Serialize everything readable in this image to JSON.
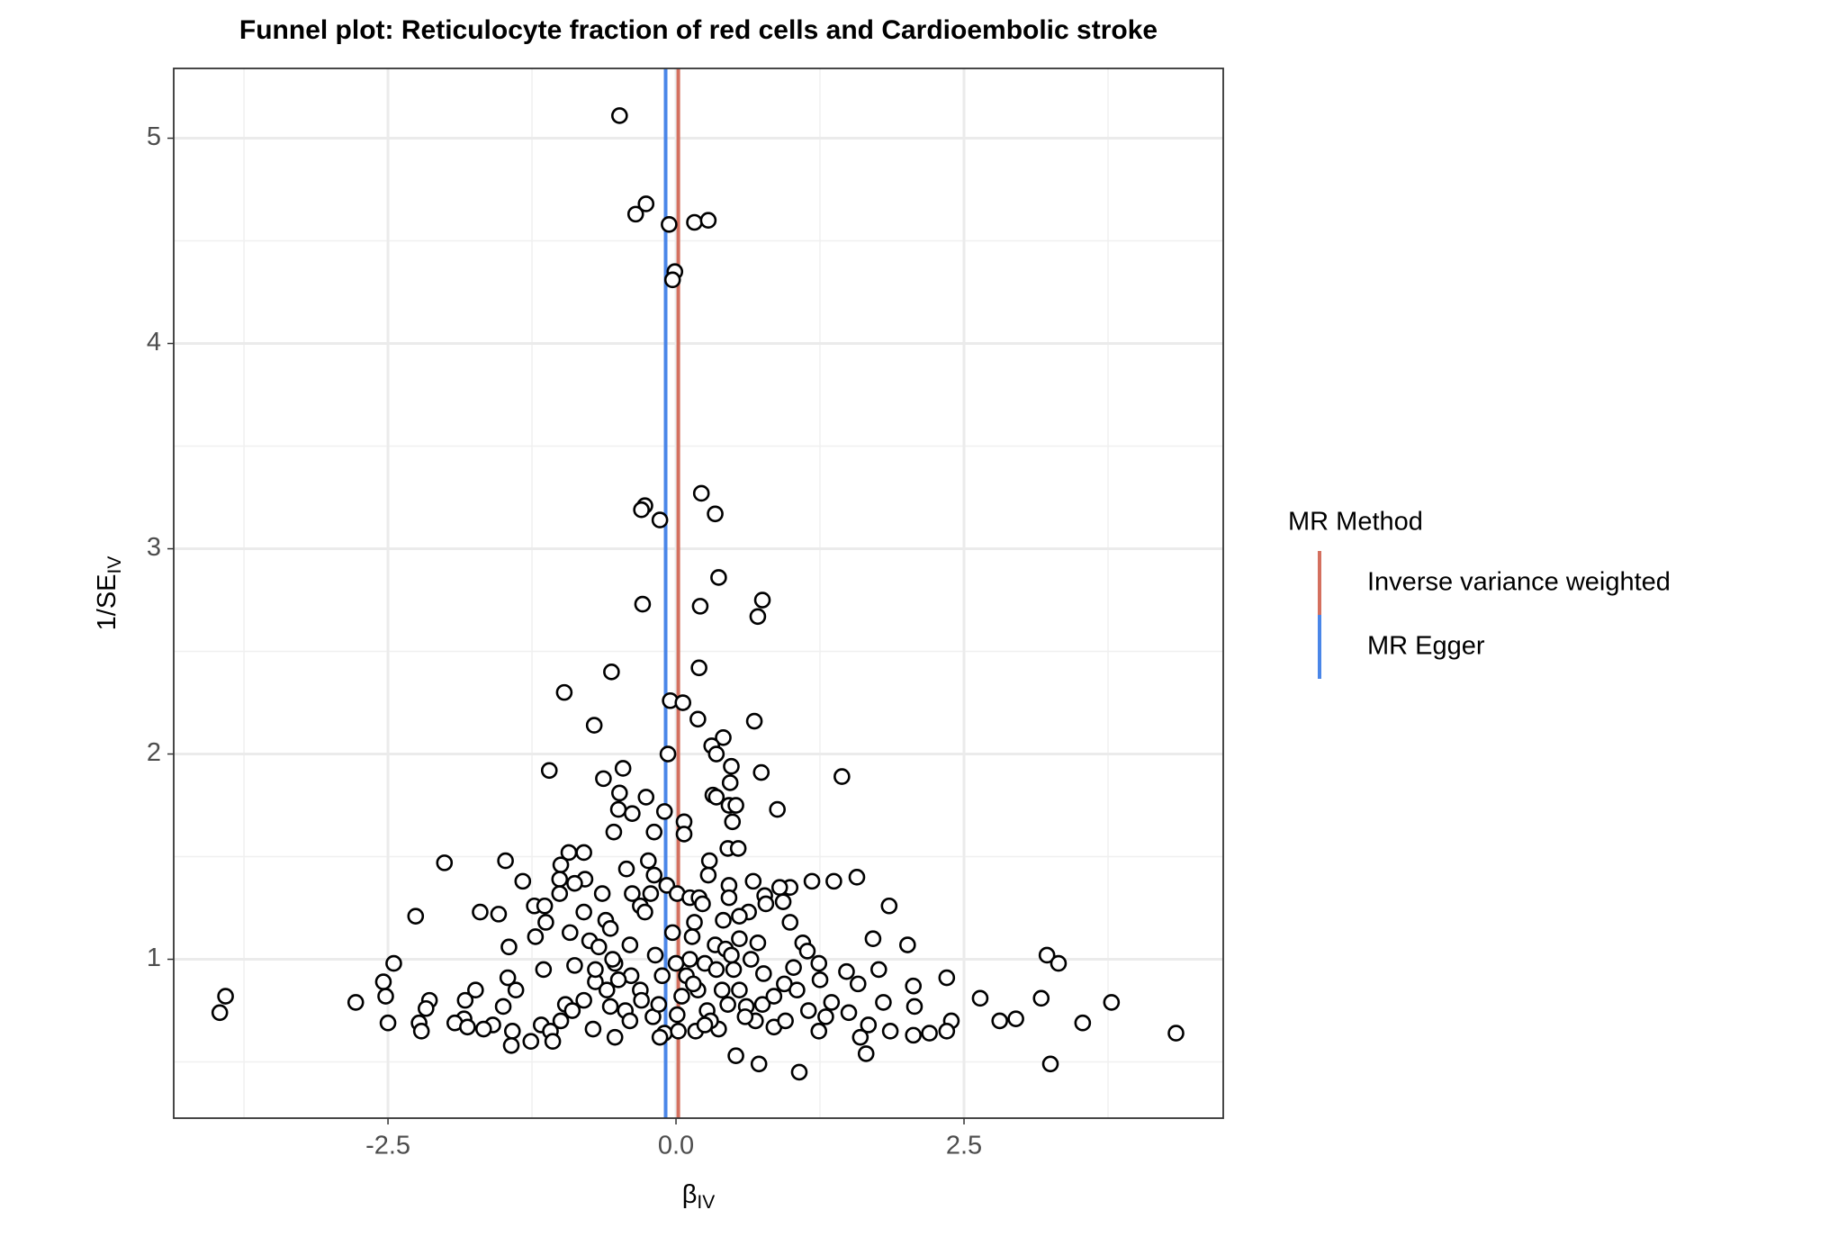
{
  "chart_data": {
    "type": "scatter",
    "title": "Funnel plot: Reticulocyte fraction of red cells and Cardioembolic stroke",
    "xlabel": "β",
    "xlabel_sub": "IV",
    "ylabel": "1/SE",
    "ylabel_sub": "IV",
    "xlim": [
      -4.36,
      4.75
    ],
    "ylim": [
      0.226,
      5.34
    ],
    "xticks": [
      -2.5,
      {
        "value": 0,
        "label": "0.0"
      },
      2.5
    ],
    "yticks": [
      1,
      2,
      3,
      4,
      5
    ],
    "grid": true,
    "minor_grid": true,
    "point_color": "#000000",
    "point_fill": "#ffffff",
    "legend_title": "MR Method",
    "lines": [
      {
        "name": "Inverse variance weighted",
        "color": "#d4705f",
        "value": 0.02
      },
      {
        "name": "MR Egger",
        "color": "#4a86e8",
        "value": -0.09
      }
    ],
    "x": [
      -0.49,
      -0.35,
      -0.26,
      -0.06,
      0.16,
      0.28,
      -0.01,
      -0.03,
      -0.27,
      -0.3,
      -0.14,
      0.22,
      0.34,
      0.37,
      -0.29,
      0.21,
      0.75,
      0.71,
      -0.56,
      0.2,
      -0.97,
      -0.05,
      0.06,
      -0.71,
      0.19,
      0.68,
      0.41,
      0.31,
      0.35,
      -0.07,
      -1.1,
      0.48,
      0.74,
      1.44,
      -0.46,
      -0.63,
      0.47,
      -0.49,
      -0.26,
      0.32,
      0.35,
      -0.5,
      -0.38,
      -0.1,
      0.46,
      0.52,
      0.88,
      0.07,
      0.49,
      -0.54,
      -0.19,
      0.07,
      -0.93,
      -0.8,
      0.45,
      0.54,
      -2.01,
      -1.48,
      -1.0,
      -0.24,
      0.29,
      -0.43,
      -0.19,
      0.28,
      -1.01,
      -1.33,
      -0.79,
      -0.88,
      0.67,
      1.18,
      1.37,
      1.57,
      0.99,
      0.9,
      -0.08,
      0.46,
      -0.38,
      0.01,
      0.12,
      0.2,
      0.77,
      0.93,
      -1.01,
      -0.64,
      -0.22,
      0.46,
      -1.7,
      -1.54,
      -1.23,
      -1.14,
      -0.8,
      -0.31,
      -0.27,
      0.23,
      0.63,
      0.78,
      1.85,
      -2.26,
      0.41,
      0.55,
      0.99,
      -1.13,
      -0.61,
      0.16,
      -0.57,
      -0.92,
      -1.22,
      -0.03,
      0.14,
      1.71,
      2.01,
      -1.45,
      -0.75,
      -0.4,
      0.34,
      0.71,
      1.1,
      -0.67,
      0.43,
      0.55,
      1.14,
      -0.18,
      0.48,
      3.22,
      3.32,
      -2.45,
      -1.15,
      -0.88,
      -0.53,
      0.0,
      0.25,
      1.02,
      1.24,
      1.48,
      1.76,
      -1.46,
      -0.39,
      -0.12,
      0.09,
      0.76,
      2.35,
      -2.54,
      -0.7,
      1.58,
      2.06,
      -1.74,
      -1.39,
      -0.31,
      0.19,
      0.94,
      -2.52,
      -3.91,
      -1.83,
      -2.14,
      -2.78,
      -0.96,
      1.35,
      1.8,
      2.64,
      3.17,
      3.78,
      -3.96,
      -2.17,
      -1.5,
      -0.57,
      0.61,
      2.07,
      0.27,
      1.5,
      -1.84,
      -0.44,
      0.01,
      0.69,
      2.81,
      2.95,
      2.39,
      -2.5,
      -2.23,
      -1.92,
      -1.59,
      -1.17,
      -0.72,
      3.53,
      1.67,
      0.37,
      0.85,
      -2.21,
      -1.81,
      -1.67,
      -1.42,
      -1.09,
      -0.1,
      0.17,
      1.24,
      1.86,
      2.2,
      2.35,
      0.02,
      -0.14,
      1.6,
      -0.53,
      2.06,
      4.34,
      -1.26,
      -1.07,
      -1.43,
      0.52,
      1.65,
      0.72,
      3.25,
      1.07,
      -0.9,
      -0.8,
      -0.6,
      -0.5,
      -0.3,
      -0.2,
      0.05,
      0.15,
      0.3,
      0.35,
      0.45,
      0.55,
      0.6,
      0.75,
      0.85,
      0.95,
      1.05,
      1.15,
      1.25,
      -1.0,
      -0.7,
      -0.4,
      0.25,
      0.5,
      0.65,
      0.4,
      -0.15,
      -0.55,
      0.12,
      1.3
    ],
    "values": [
      5.11,
      4.63,
      4.68,
      4.58,
      4.59,
      4.6,
      4.35,
      4.31,
      3.21,
      3.19,
      3.14,
      3.27,
      3.17,
      2.86,
      2.73,
      2.72,
      2.75,
      2.67,
      2.4,
      2.42,
      2.3,
      2.26,
      2.25,
      2.14,
      2.17,
      2.16,
      2.08,
      2.04,
      2.0,
      2.0,
      1.92,
      1.94,
      1.91,
      1.89,
      1.93,
      1.88,
      1.86,
      1.81,
      1.79,
      1.8,
      1.79,
      1.73,
      1.71,
      1.72,
      1.75,
      1.75,
      1.73,
      1.67,
      1.67,
      1.62,
      1.62,
      1.61,
      1.52,
      1.52,
      1.54,
      1.54,
      1.47,
      1.48,
      1.46,
      1.48,
      1.48,
      1.44,
      1.41,
      1.41,
      1.39,
      1.38,
      1.39,
      1.37,
      1.38,
      1.38,
      1.38,
      1.4,
      1.35,
      1.35,
      1.36,
      1.36,
      1.32,
      1.32,
      1.3,
      1.3,
      1.31,
      1.28,
      1.32,
      1.32,
      1.32,
      1.3,
      1.23,
      1.22,
      1.26,
      1.26,
      1.23,
      1.26,
      1.23,
      1.27,
      1.23,
      1.27,
      1.26,
      1.21,
      1.19,
      1.21,
      1.18,
      1.18,
      1.19,
      1.18,
      1.15,
      1.13,
      1.11,
      1.13,
      1.11,
      1.1,
      1.07,
      1.06,
      1.09,
      1.07,
      1.07,
      1.08,
      1.08,
      1.06,
      1.05,
      1.1,
      1.04,
      1.02,
      1.02,
      1.02,
      0.98,
      0.98,
      0.95,
      0.97,
      0.98,
      0.98,
      0.98,
      0.96,
      0.98,
      0.94,
      0.95,
      0.91,
      0.92,
      0.92,
      0.92,
      0.93,
      0.91,
      0.89,
      0.89,
      0.88,
      0.87,
      0.85,
      0.85,
      0.85,
      0.85,
      0.88,
      0.82,
      0.82,
      0.8,
      0.8,
      0.79,
      0.78,
      0.79,
      0.79,
      0.81,
      0.81,
      0.79,
      0.74,
      0.76,
      0.77,
      0.77,
      0.77,
      0.77,
      0.75,
      0.74,
      0.71,
      0.75,
      0.73,
      0.7,
      0.7,
      0.71,
      0.7,
      0.69,
      0.69,
      0.69,
      0.68,
      0.68,
      0.66,
      0.69,
      0.68,
      0.66,
      0.67,
      0.65,
      0.67,
      0.66,
      0.65,
      0.65,
      0.64,
      0.65,
      0.65,
      0.65,
      0.64,
      0.65,
      0.65,
      0.62,
      0.62,
      0.62,
      0.63,
      0.64,
      0.6,
      0.6,
      0.58,
      0.53,
      0.54,
      0.49,
      0.49,
      0.45,
      0.75,
      0.8,
      0.85,
      0.9,
      0.8,
      0.72,
      0.82,
      0.88,
      0.7,
      0.95,
      0.78,
      0.85,
      0.72,
      0.78,
      0.82,
      0.7,
      0.85,
      0.75,
      0.9,
      0.7,
      0.95,
      0.7,
      0.68,
      0.95,
      1.0,
      0.85,
      0.78,
      1.0,
      1.0,
      0.72
    ]
  }
}
